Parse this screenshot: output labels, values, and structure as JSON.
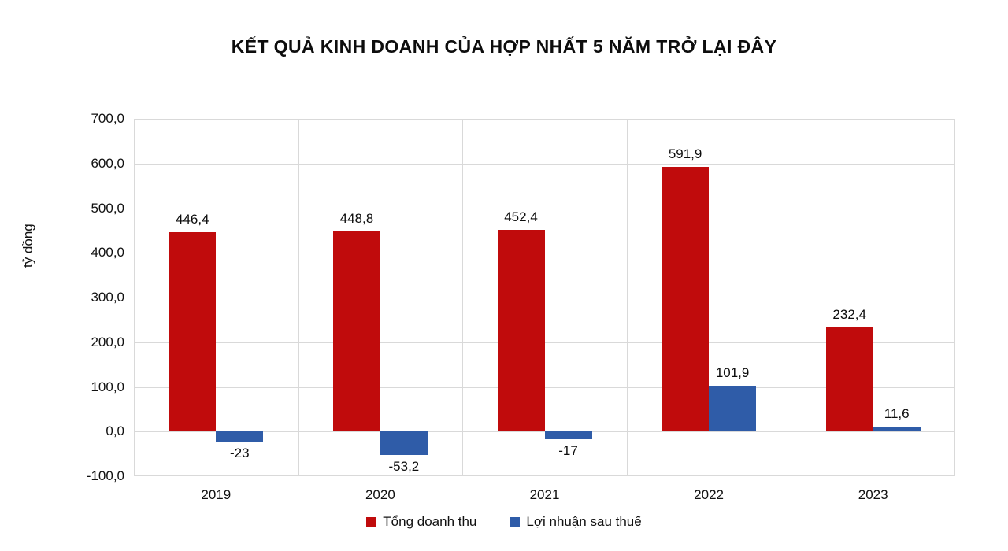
{
  "title": "KẾT QUẢ KINH DOANH CỦA HỢP NHẤT 5 NĂM TRỞ LẠI ĐÂY",
  "chart_data": {
    "type": "bar",
    "categories": [
      "2019",
      "2020",
      "2021",
      "2022",
      "2023"
    ],
    "series": [
      {
        "name": "Tổng doanh thu",
        "color": "#c00b0c",
        "values": [
          446.4,
          448.8,
          452.4,
          591.9,
          232.4
        ],
        "labels": [
          "446,4",
          "448,8",
          "452,4",
          "591,9",
          "232,4"
        ]
      },
      {
        "name": "Lợi nhuận sau thuế",
        "color": "#2f5ca8",
        "values": [
          -23,
          -53.2,
          -17,
          101.9,
          11.6
        ],
        "labels": [
          "-23",
          "-53,2",
          "-17",
          "101,9",
          "11,6"
        ]
      }
    ],
    "xlabel": "",
    "ylabel": "tỷ đồng",
    "ylim": [
      -100,
      700
    ],
    "ytick_step": 100,
    "ytick_labels": [
      "700,0",
      "600,0",
      "500,0",
      "400,0",
      "300,0",
      "200,0",
      "100,0",
      "0,0",
      "-100,0"
    ],
    "grid": true,
    "legend_position": "bottom"
  },
  "colors": {
    "background": "#ffffff",
    "grid": "#d9d9d9",
    "text": "#111111"
  }
}
